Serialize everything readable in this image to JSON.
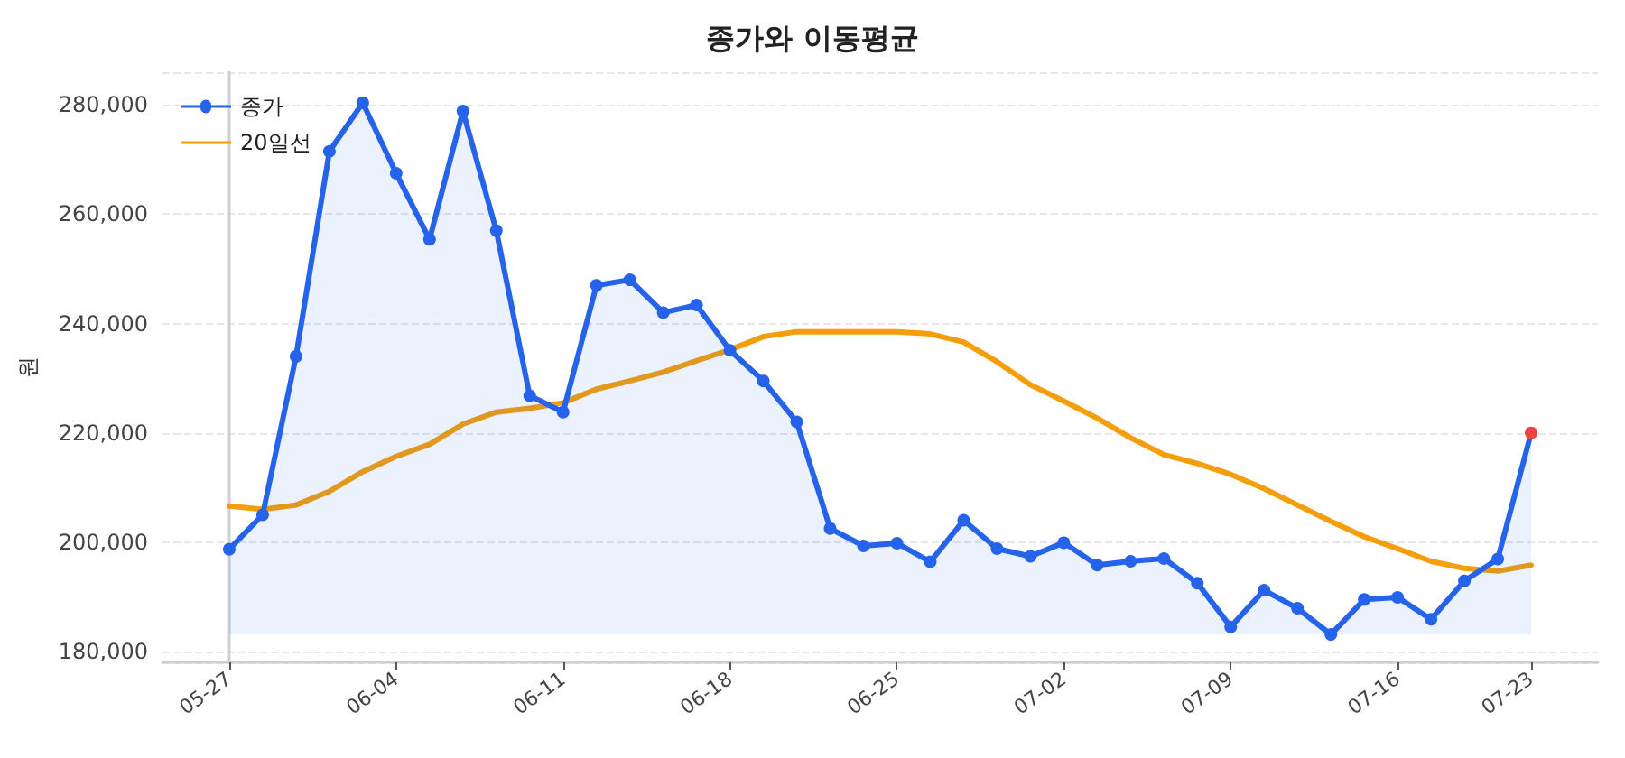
{
  "chart_data": {
    "type": "line",
    "title": "종가와 이동평균",
    "ylabel": "원",
    "categories": [
      "05-27",
      null,
      null,
      null,
      null,
      "06-04",
      null,
      null,
      null,
      null,
      "06-11",
      null,
      null,
      null,
      null,
      "06-18",
      null,
      null,
      null,
      null,
      "06-25",
      null,
      null,
      null,
      null,
      "07-02",
      null,
      null,
      null,
      null,
      "07-09",
      null,
      null,
      null,
      null,
      "07-16",
      null,
      null,
      null,
      "07-23"
    ],
    "series": [
      {
        "name": "종가",
        "type": "area",
        "marker": "circle",
        "color": "#2563eb",
        "colors": [
          "#2563eb",
          "#2563eb",
          "#2563eb",
          "#2563eb",
          "#2563eb",
          "#2563eb",
          "#2563eb",
          "#2563eb",
          "#2563eb",
          "#2563eb",
          "#2563eb",
          "#2563eb",
          "#2563eb",
          "#2563eb",
          "#2563eb",
          "#2563eb",
          "#2563eb",
          "#2563eb",
          "#2563eb",
          "#2563eb",
          "#2563eb",
          "#2563eb",
          "#2563eb",
          "#2563eb",
          "#2563eb",
          "#2563eb",
          "#2563eb",
          "#2563eb",
          "#2563eb",
          "#2563eb",
          "#2563eb",
          "#2563eb",
          "#2563eb",
          "#2563eb",
          "#2563eb",
          "#2563eb",
          "#2563eb",
          "#2563eb",
          "#2563eb",
          "#ef4444"
        ],
        "values": [
          198700,
          205000,
          234000,
          271500,
          280400,
          267500,
          255400,
          278900,
          257000,
          226800,
          223800,
          247000,
          248000,
          242000,
          243400,
          235100,
          229500,
          222000,
          202500,
          199300,
          199800,
          196400,
          204000,
          198800,
          197400,
          199900,
          195800,
          196500,
          197000,
          192500,
          184500,
          191200,
          187900,
          183100,
          189500,
          189900,
          185900,
          192900,
          196900,
          220000
        ]
      },
      {
        "name": "20일선",
        "type": "line",
        "marker": "none",
        "color": "#f59e0b",
        "values": [
          206600,
          206000,
          206800,
          209300,
          212900,
          215700,
          217900,
          221600,
          223800,
          224500,
          225500,
          228000,
          229500,
          231100,
          233200,
          235200,
          237600,
          238500,
          238500,
          238500,
          238500,
          238100,
          236600,
          233000,
          228800,
          225800,
          222700,
          219100,
          216000,
          214400,
          212400,
          209800,
          206800,
          203800,
          201000,
          198800,
          196500,
          195200,
          194700,
          195800
        ]
      }
    ],
    "ylim": [
      178000,
      286000
    ],
    "yticks": [
      {
        "value": 180000,
        "label": "180,000"
      },
      {
        "value": 200000,
        "label": "200,000"
      },
      {
        "value": 220000,
        "label": "220,000"
      },
      {
        "value": 240000,
        "label": "240,000"
      },
      {
        "value": 260000,
        "label": "260,000"
      },
      {
        "value": 280000,
        "label": "280,000"
      }
    ],
    "grid": "y",
    "legend": "top left",
    "line_style": "solid"
  }
}
